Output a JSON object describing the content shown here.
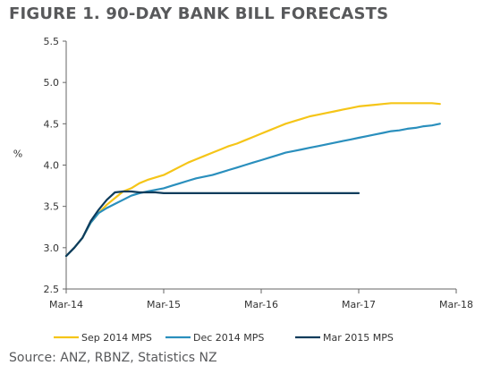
{
  "chart_data": {
    "type": "line",
    "title": "FIGURE 1. 90-DAY BANK BILL FORECASTS",
    "ylabel": "%",
    "xlabel": "",
    "ylim": [
      2.5,
      5.5
    ],
    "yticks": [
      2.5,
      3.0,
      3.5,
      4.0,
      4.5,
      5.0,
      5.5
    ],
    "ytick_labels": [
      "2.5",
      "3.0",
      "3.5",
      "4.0",
      "4.5",
      "5.0",
      "5.5"
    ],
    "xlim": [
      0,
      48
    ],
    "xticks": [
      0,
      12,
      24,
      36,
      48
    ],
    "xtick_labels": [
      "Mar-14",
      "Mar-15",
      "Mar-16",
      "Mar-17",
      "Mar-18"
    ],
    "x_unit": "months since Mar-14",
    "grid": false,
    "legend_position": "bottom",
    "series": [
      {
        "name": "Sep 2014 MPS",
        "color": "#f5c518",
        "x": [
          0,
          1,
          2,
          3,
          4,
          5,
          6,
          7,
          8,
          9,
          10,
          11,
          12,
          13,
          14,
          15,
          16,
          17,
          18,
          19,
          20,
          21,
          22,
          23,
          24,
          25,
          26,
          27,
          28,
          29,
          30,
          31,
          32,
          33,
          34,
          35,
          36,
          37,
          38,
          39,
          40,
          41,
          42,
          43,
          44,
          45,
          46
        ],
        "values": [
          2.9,
          3.0,
          3.12,
          3.3,
          3.42,
          3.52,
          3.6,
          3.68,
          3.72,
          3.78,
          3.82,
          3.85,
          3.88,
          3.93,
          3.98,
          4.03,
          4.07,
          4.11,
          4.15,
          4.19,
          4.23,
          4.26,
          4.3,
          4.34,
          4.38,
          4.42,
          4.46,
          4.5,
          4.53,
          4.56,
          4.59,
          4.61,
          4.63,
          4.65,
          4.67,
          4.69,
          4.71,
          4.72,
          4.73,
          4.74,
          4.75,
          4.75,
          4.75,
          4.75,
          4.75,
          4.75,
          4.74
        ]
      },
      {
        "name": "Dec 2014 MPS",
        "color": "#2a8fbd",
        "x": [
          0,
          1,
          2,
          3,
          4,
          5,
          6,
          7,
          8,
          9,
          10,
          11,
          12,
          13,
          14,
          15,
          16,
          17,
          18,
          19,
          20,
          21,
          22,
          23,
          24,
          25,
          26,
          27,
          28,
          29,
          30,
          31,
          32,
          33,
          34,
          35,
          36,
          37,
          38,
          39,
          40,
          41,
          42,
          43,
          44,
          45,
          46
        ],
        "values": [
          2.9,
          3.0,
          3.12,
          3.3,
          3.42,
          3.48,
          3.53,
          3.58,
          3.63,
          3.66,
          3.68,
          3.7,
          3.72,
          3.75,
          3.78,
          3.81,
          3.84,
          3.86,
          3.88,
          3.91,
          3.94,
          3.97,
          4.0,
          4.03,
          4.06,
          4.09,
          4.12,
          4.15,
          4.17,
          4.19,
          4.21,
          4.23,
          4.25,
          4.27,
          4.29,
          4.31,
          4.33,
          4.35,
          4.37,
          4.39,
          4.41,
          4.42,
          4.44,
          4.45,
          4.47,
          4.48,
          4.5
        ]
      },
      {
        "name": "Mar 2015 MPS",
        "color": "#0e3c5c",
        "x": [
          0,
          1,
          2,
          3,
          4,
          5,
          6,
          7,
          8,
          9,
          10,
          11,
          12,
          13,
          14,
          15,
          16,
          17,
          18,
          19,
          20,
          21,
          22,
          23,
          24,
          25,
          26,
          27,
          28,
          29,
          30,
          31,
          32,
          33,
          34,
          35,
          36
        ],
        "values": [
          2.9,
          3.0,
          3.12,
          3.32,
          3.46,
          3.58,
          3.67,
          3.68,
          3.68,
          3.67,
          3.67,
          3.67,
          3.66,
          3.66,
          3.66,
          3.66,
          3.66,
          3.66,
          3.66,
          3.66,
          3.66,
          3.66,
          3.66,
          3.66,
          3.66,
          3.66,
          3.66,
          3.66,
          3.66,
          3.66,
          3.66,
          3.66,
          3.66,
          3.66,
          3.66,
          3.66,
          3.66
        ]
      }
    ]
  },
  "source": "Source: ANZ, RBNZ, Statistics NZ"
}
